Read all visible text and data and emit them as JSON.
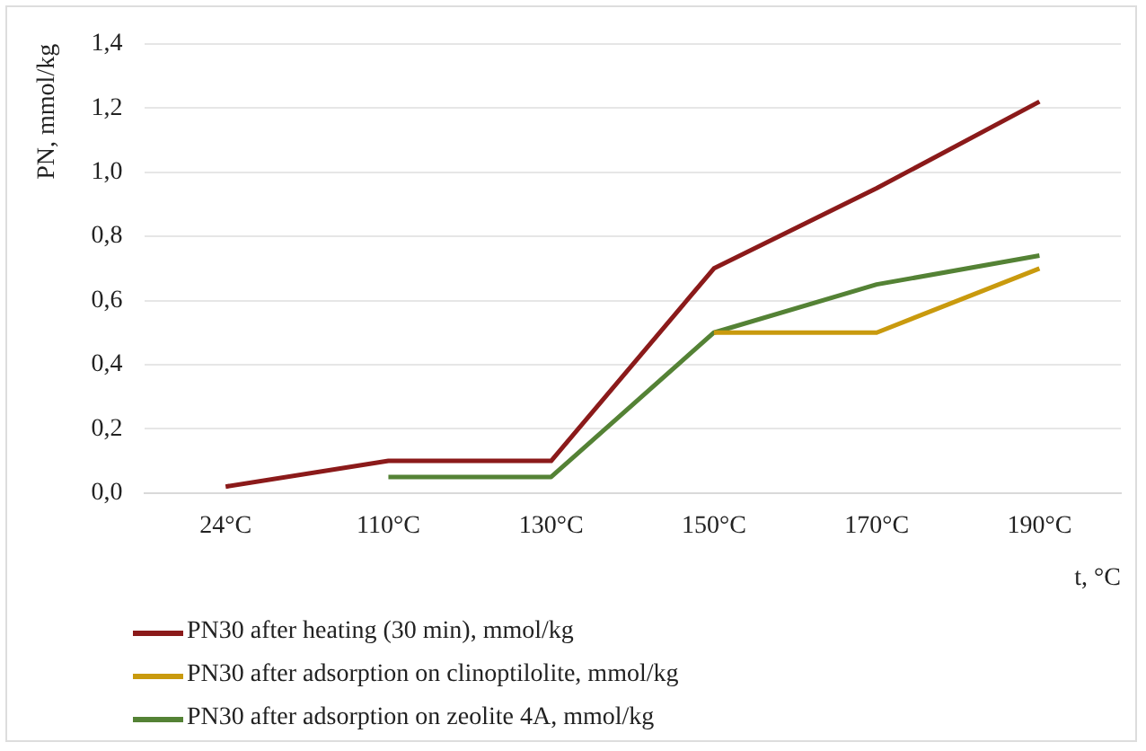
{
  "chart_data": {
    "type": "line",
    "xlabel": "t, °C",
    "ylabel": "PN, mmol/kg",
    "categories": [
      "24°C",
      "110°C",
      "130°C",
      "150°C",
      "170°C",
      "190°C"
    ],
    "series": [
      {
        "name": "PN30 after heating (30 min), mmol/kg",
        "color": "#8b1a1a",
        "values": [
          0.02,
          0.1,
          0.1,
          0.7,
          0.95,
          1.22
        ]
      },
      {
        "name": "PN30 after adsorption on clinoptilolite, mmol/kg",
        "color": "#c99a0e",
        "values": [
          null,
          null,
          null,
          0.5,
          0.5,
          0.7
        ]
      },
      {
        "name": "PN30 after adsorption on zeolite 4A, mmol/kg",
        "color": "#548235",
        "values": [
          null,
          0.05,
          0.05,
          0.5,
          0.65,
          0.74
        ]
      }
    ],
    "ylim": [
      0,
      1.4
    ],
    "yticks": [
      {
        "value": 0,
        "label": "0,0"
      },
      {
        "value": 0.2,
        "label": "0,2"
      },
      {
        "value": 0.4,
        "label": "0,4"
      },
      {
        "value": 0.6,
        "label": "0,6"
      },
      {
        "value": 0.8,
        "label": "0,8"
      },
      {
        "value": 1,
        "label": "1,0"
      },
      {
        "value": 1.2,
        "label": "1,2"
      },
      {
        "value": 1.4,
        "label": "1,4"
      }
    ],
    "grid": "y",
    "legend": "bottom",
    "marker": "none",
    "line_style": "solid"
  }
}
